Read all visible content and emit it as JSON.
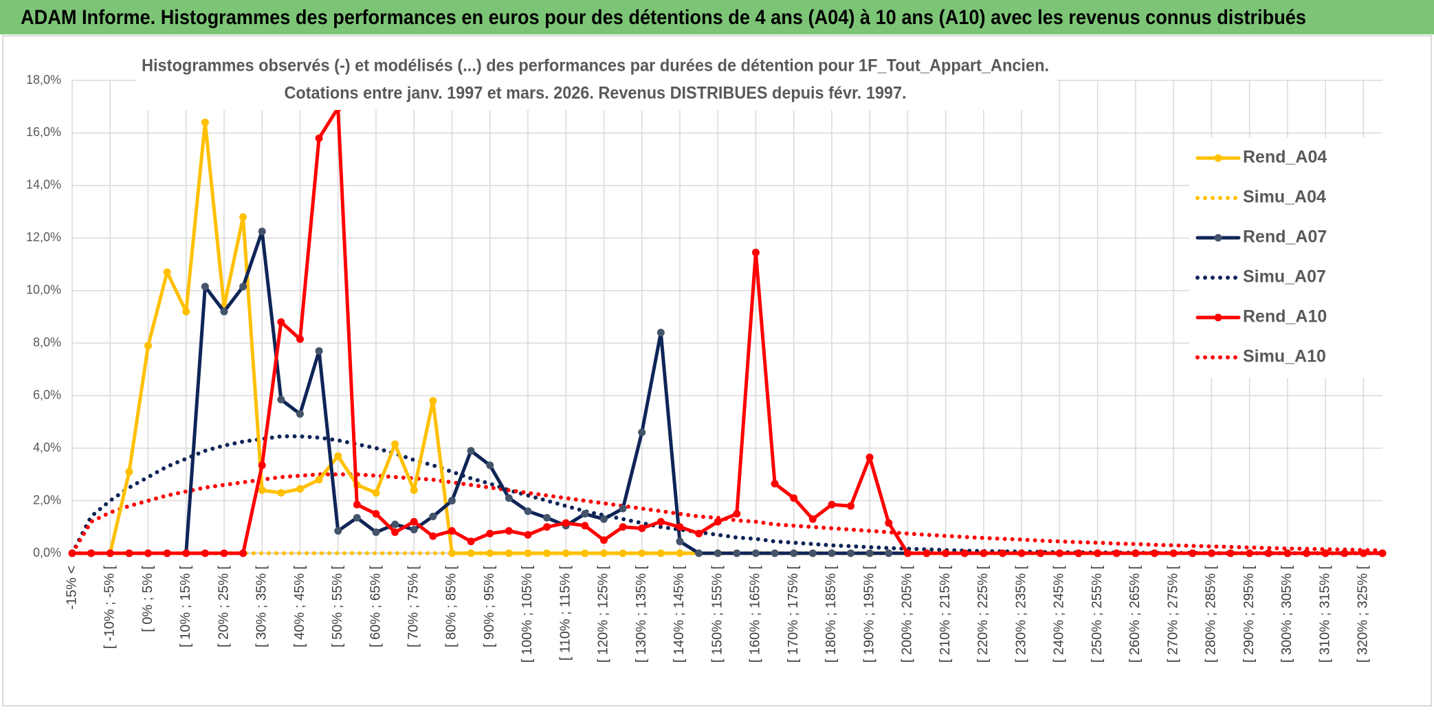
{
  "header": {
    "title": "ADAM Informe. Histogrammes des performances en euros pour des détentions de 4 ans (A04) à 10 ans (A10) avec les revenus connus distribués"
  },
  "chart_data": {
    "type": "line",
    "title": "Histogrammes observés (-) et modélisés (...) des performances par durées de détention pour 1F_Tout_Appart_Ancien.",
    "subtitle": "Cotations entre janv. 1997 et mars. 2026. Revenus DISTRIBUES depuis févr. 1997.",
    "categories": [
      "-15% <",
      null,
      "[ -10% ; -5% [",
      null,
      "[ 0% ; 5% [",
      null,
      "[ 10% ; 15% [",
      null,
      "[ 20% ; 25% [",
      null,
      "[ 30% ; 35% [",
      null,
      "[ 40% ; 45% [",
      null,
      "[ 50% ; 55% [",
      null,
      "[ 60% ; 65% [",
      null,
      "[ 70% ; 75% [",
      null,
      "[ 80% ; 85% [",
      null,
      "[ 90% ; 95% [",
      null,
      "[ 100% ; 105% [",
      null,
      "[ 110% ; 115% [",
      null,
      "[ 120% ; 125% [",
      null,
      "[ 130% ; 135% [",
      null,
      "[ 140% ; 145% [",
      null,
      "[ 150% ; 155% [",
      null,
      "[ 160% ; 165% [",
      null,
      "[ 170% ; 175% [",
      null,
      "[ 180% ; 185% [",
      null,
      "[ 190% ; 195% [",
      null,
      "[ 200% ; 205% [",
      null,
      "[ 210% ; 215% [",
      null,
      "[ 220% ; 225% [",
      null,
      "[ 230% ; 235% [",
      null,
      "[ 240% ; 245% [",
      null,
      "[ 250% ; 255% [",
      null,
      "[ 260% ; 265% [",
      null,
      "[ 270% ; 275% [",
      null,
      "[ 280% ; 285% [",
      null,
      "[ 290% ; 295% [",
      null,
      "[ 300% ; 305% [",
      null,
      "[ 310% ; 315% [",
      null,
      "[ 320% ; 325% [",
      null
    ],
    "ylim": [
      0,
      18
    ],
    "yticks": [
      {
        "value": 0,
        "label": "0,0%"
      },
      {
        "value": 2,
        "label": "2,0%"
      },
      {
        "value": 4,
        "label": "4,0%"
      },
      {
        "value": 6,
        "label": "6,0%"
      },
      {
        "value": 8,
        "label": "8,0%"
      },
      {
        "value": 10,
        "label": "10,0%"
      },
      {
        "value": 12,
        "label": "12,0%"
      },
      {
        "value": 14,
        "label": "14,0%"
      },
      {
        "value": 16,
        "label": "16,0%"
      },
      {
        "value": 18,
        "label": "18,0%"
      }
    ],
    "grid": true,
    "legend": "right",
    "series": [
      {
        "name": "Rend_A04",
        "color": "#ffc000",
        "line_style": "solid",
        "markers": true,
        "values": [
          0,
          0,
          0,
          3.1,
          7.9,
          10.7,
          9.2,
          16.4,
          9.4,
          12.8,
          2.4,
          2.3,
          2.45,
          2.8,
          3.7,
          2.6,
          2.3,
          4.15,
          2.4,
          5.8,
          0,
          0,
          0,
          0,
          0,
          0,
          0,
          0,
          0,
          0,
          0,
          0,
          0,
          0,
          0,
          0,
          0,
          0,
          0,
          0,
          0,
          0,
          0,
          0,
          0,
          0,
          0,
          0,
          0,
          0,
          0,
          0,
          0,
          0,
          0,
          0,
          0,
          0,
          0,
          0,
          0,
          0,
          0,
          0,
          0,
          0,
          0,
          0,
          0,
          0
        ]
      },
      {
        "name": "Simu_A04",
        "color": "#ffc000",
        "line_style": "dotted",
        "markers": false,
        "values": [
          0,
          0,
          0,
          0,
          0,
          0,
          0,
          0,
          0,
          0,
          0,
          0,
          0,
          0,
          0,
          0,
          0,
          0,
          0,
          0,
          0,
          0,
          0,
          0,
          0,
          0,
          0,
          0,
          0,
          0,
          0,
          0,
          0,
          0,
          0,
          0,
          0,
          0,
          0,
          0,
          0,
          0,
          0,
          0,
          0,
          0,
          0,
          0,
          0,
          0,
          0,
          0,
          0,
          0,
          0,
          0,
          0,
          0,
          0,
          0,
          0,
          0,
          0,
          0,
          0,
          0,
          0,
          0,
          0,
          0
        ]
      },
      {
        "name": "Rend_A07",
        "color": "#0f2557",
        "line_style": "solid",
        "markers": true,
        "values": [
          0,
          0,
          0,
          0,
          0,
          0,
          0,
          10.15,
          9.2,
          10.15,
          12.25,
          5.85,
          5.3,
          7.7,
          0.85,
          1.35,
          0.8,
          1.1,
          0.9,
          1.4,
          2.0,
          3.9,
          3.35,
          2.1,
          1.6,
          1.35,
          1.05,
          1.5,
          1.3,
          1.7,
          4.6,
          8.4,
          0.45,
          0,
          0,
          0,
          0,
          0,
          0,
          0,
          0,
          0,
          0,
          0,
          0,
          0,
          0,
          0,
          0,
          0,
          0,
          0,
          0,
          0,
          0,
          0,
          0,
          0,
          0,
          0,
          0,
          0,
          0,
          0,
          0,
          0,
          0,
          0,
          0,
          0
        ]
      },
      {
        "name": "Simu_A07",
        "color": "#0f2557",
        "line_style": "dotted",
        "markers": false,
        "values": [
          0,
          1.4,
          2.0,
          2.5,
          2.9,
          3.3,
          3.6,
          3.9,
          4.1,
          4.25,
          4.35,
          4.45,
          4.45,
          4.4,
          4.3,
          4.15,
          4.0,
          3.8,
          3.55,
          3.35,
          3.1,
          2.85,
          2.65,
          2.4,
          2.2,
          2.0,
          1.8,
          1.6,
          1.45,
          1.3,
          1.15,
          1.0,
          0.9,
          0.8,
          0.7,
          0.6,
          0.55,
          0.45,
          0.4,
          0.35,
          0.3,
          0.27,
          0.23,
          0.2,
          0.17,
          0.15,
          0.12,
          0.1,
          0.08,
          0.07,
          0.06,
          0.05,
          0.04,
          0.03,
          0.03,
          0.02,
          0.02,
          0.01,
          0.01,
          0.01,
          0,
          0,
          0,
          0,
          0,
          0,
          0,
          0,
          0,
          0
        ]
      },
      {
        "name": "Rend_A10",
        "color": "#ff0000",
        "line_style": "solid",
        "markers": true,
        "values": [
          0,
          0,
          0,
          0,
          0,
          0,
          0,
          0,
          0,
          0,
          3.35,
          8.8,
          8.15,
          15.8,
          16.95,
          1.85,
          1.5,
          0.8,
          1.2,
          0.65,
          0.85,
          0.45,
          0.75,
          0.85,
          0.7,
          1.0,
          1.15,
          1.05,
          0.5,
          1.0,
          0.95,
          1.2,
          1.0,
          0.75,
          1.2,
          1.5,
          11.45,
          2.65,
          2.1,
          1.3,
          1.85,
          1.8,
          3.65,
          1.15,
          0,
          0,
          0,
          0,
          0,
          0,
          0,
          0,
          0,
          0,
          0,
          0,
          0,
          0,
          0,
          0,
          0,
          0,
          0,
          0,
          0,
          0,
          0,
          0,
          0,
          0
        ]
      },
      {
        "name": "Simu_A10",
        "color": "#ff0000",
        "line_style": "dotted",
        "markers": false,
        "values": [
          0,
          1.2,
          1.55,
          1.8,
          2.0,
          2.2,
          2.35,
          2.5,
          2.6,
          2.7,
          2.8,
          2.9,
          2.95,
          3.0,
          3.0,
          3.0,
          2.95,
          2.9,
          2.85,
          2.8,
          2.7,
          2.6,
          2.5,
          2.4,
          2.3,
          2.2,
          2.1,
          2.0,
          1.9,
          1.8,
          1.7,
          1.6,
          1.5,
          1.4,
          1.35,
          1.25,
          1.2,
          1.1,
          1.05,
          1.0,
          0.95,
          0.9,
          0.85,
          0.8,
          0.75,
          0.7,
          0.66,
          0.62,
          0.58,
          0.55,
          0.52,
          0.48,
          0.45,
          0.42,
          0.4,
          0.37,
          0.35,
          0.32,
          0.3,
          0.28,
          0.26,
          0.24,
          0.22,
          0.2,
          0.18,
          0.17,
          0.15,
          0.14,
          0.12,
          0.11
        ]
      }
    ]
  }
}
